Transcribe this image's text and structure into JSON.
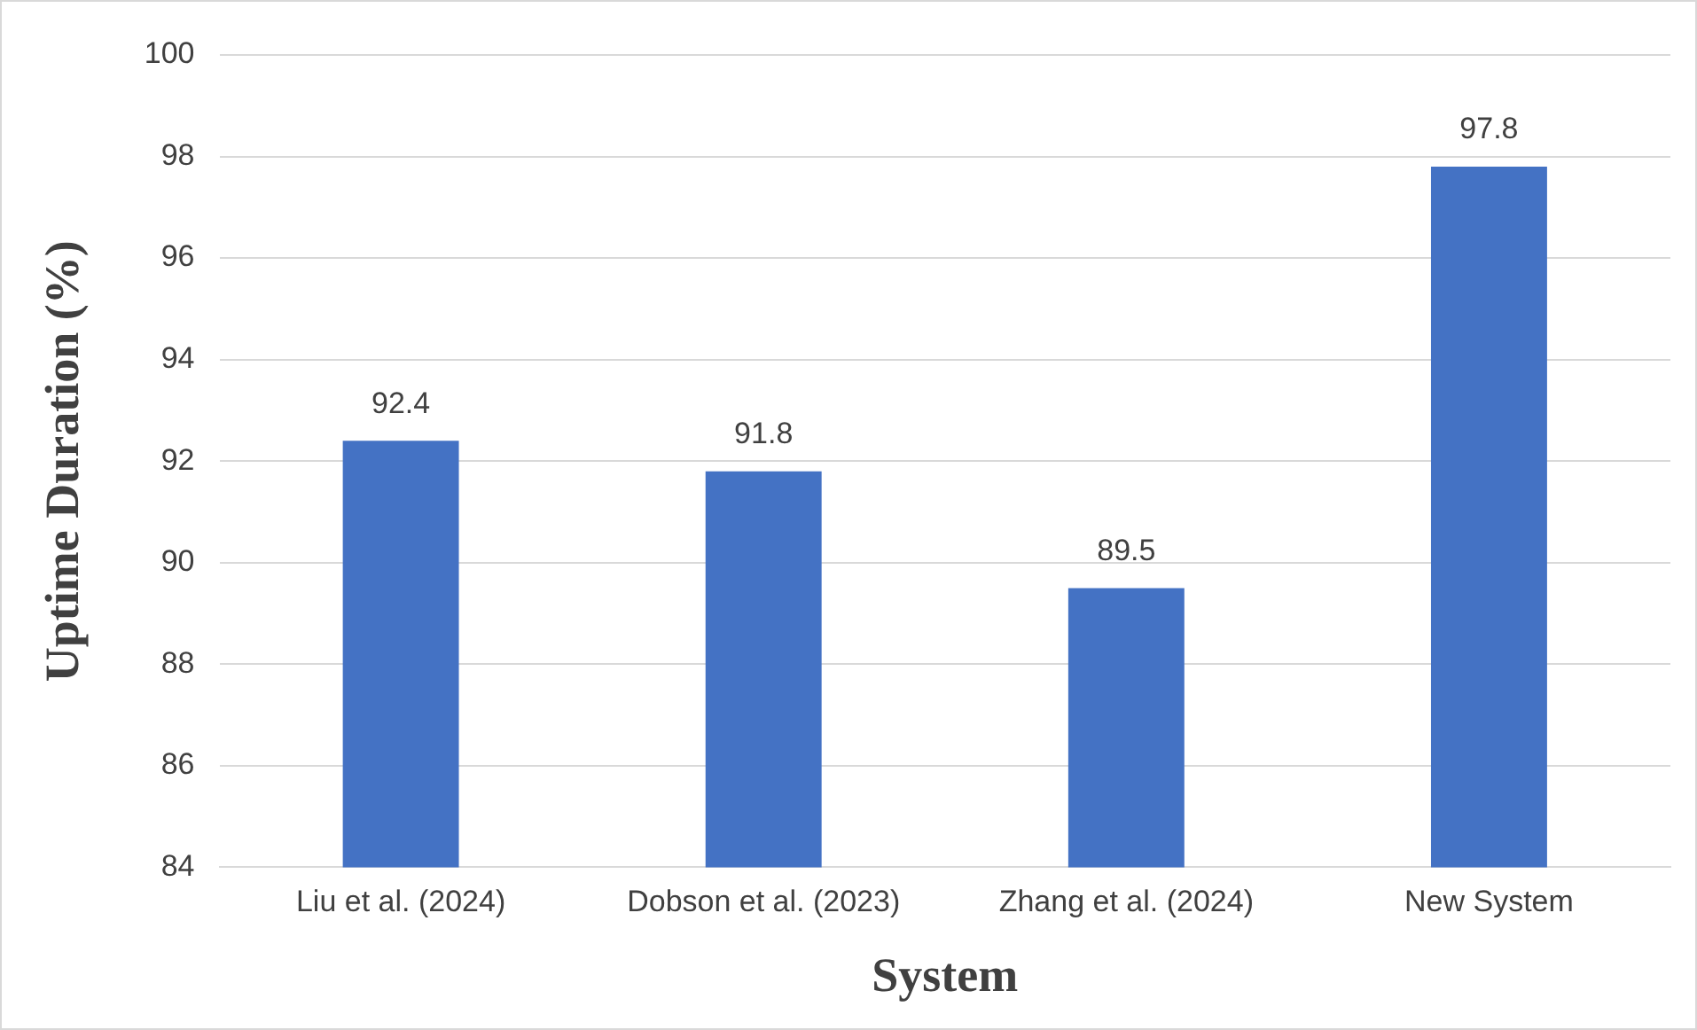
{
  "chart_data": {
    "type": "bar",
    "xlabel": "System",
    "ylabel": "Uptime Duration (%)",
    "categories": [
      "Liu et al. (2024)",
      "Dobson et al. (2023)",
      "Zhang et al. (2024)",
      "New System"
    ],
    "values": [
      92.4,
      91.8,
      89.5,
      97.8
    ],
    "color": "#4472c4",
    "ylim": [
      84,
      100
    ],
    "yticks": [
      84,
      86,
      88,
      90,
      92,
      94,
      96,
      98,
      100
    ],
    "grid": "y",
    "data_labels": true
  }
}
